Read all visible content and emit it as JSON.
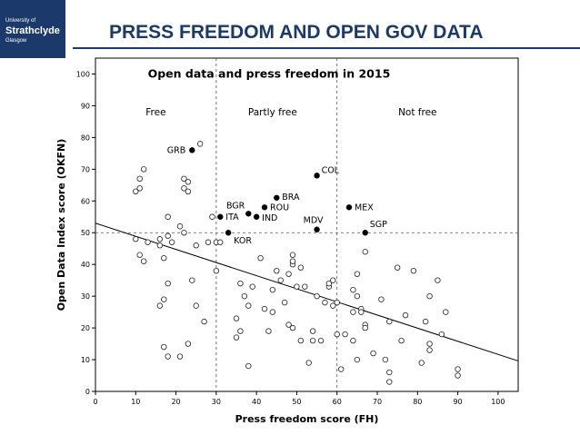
{
  "header": {
    "title": "PRESS FREEDOM AND OPEN GOV DATA",
    "logo_line1": "University of",
    "logo_line2": "Strathclyde",
    "logo_line3": "Glasgow"
  },
  "colors": {
    "brand": "#1b3a6b",
    "text": "#000000"
  },
  "chart_data": {
    "type": "scatter",
    "title": "Open data and press freedom in 2015",
    "xlabel": "Press freedom score (FH)",
    "ylabel": "Open Data Index score (OKFN)",
    "xlim": [
      0,
      105
    ],
    "ylim": [
      0,
      105
    ],
    "xticks": [
      0,
      10,
      20,
      30,
      40,
      50,
      60,
      70,
      80,
      90,
      100
    ],
    "yticks": [
      0,
      10,
      20,
      30,
      40,
      50,
      60,
      70,
      80,
      90,
      100
    ],
    "reference_lines": {
      "x": [
        30,
        60
      ],
      "y": [
        50
      ]
    },
    "regions": [
      {
        "label": "Free",
        "x": 15,
        "y": 87
      },
      {
        "label": "Partly free",
        "x": 44,
        "y": 87
      },
      {
        "label": "Not free",
        "x": 80,
        "y": 87
      }
    ],
    "labeled_points": [
      {
        "label": "GRB",
        "x": 24,
        "y": 76
      },
      {
        "label": "COL",
        "x": 55,
        "y": 68
      },
      {
        "label": "BRA",
        "x": 45,
        "y": 61
      },
      {
        "label": "BGR",
        "x": 38,
        "y": 56
      },
      {
        "label": "ROU",
        "x": 42,
        "y": 58
      },
      {
        "label": "IND",
        "x": 40,
        "y": 55
      },
      {
        "label": "ITA",
        "x": 31,
        "y": 55
      },
      {
        "label": "MEX",
        "x": 63,
        "y": 58
      },
      {
        "label": "MDV",
        "x": 55,
        "y": 51
      },
      {
        "label": "SGP",
        "x": 67,
        "y": 50
      },
      {
        "label": "KOR",
        "x": 33,
        "y": 50
      }
    ],
    "points": [
      [
        10,
        63
      ],
      [
        11,
        64
      ],
      [
        11,
        67
      ],
      [
        12,
        70
      ],
      [
        10,
        48
      ],
      [
        11,
        43
      ],
      [
        12,
        41
      ],
      [
        13,
        47
      ],
      [
        16,
        48
      ],
      [
        16,
        46
      ],
      [
        16,
        27
      ],
      [
        17,
        42
      ],
      [
        17,
        29
      ],
      [
        17,
        14
      ],
      [
        18,
        34
      ],
      [
        18,
        11
      ],
      [
        18,
        55
      ],
      [
        18,
        49
      ],
      [
        19,
        47
      ],
      [
        21,
        52
      ],
      [
        21,
        11
      ],
      [
        22,
        67
      ],
      [
        22,
        64
      ],
      [
        23,
        63
      ],
      [
        23,
        66
      ],
      [
        22,
        50
      ],
      [
        23,
        15
      ],
      [
        24,
        35
      ],
      [
        25,
        46
      ],
      [
        25,
        27
      ],
      [
        26,
        78
      ],
      [
        27,
        22
      ],
      [
        28,
        47
      ],
      [
        29,
        55
      ],
      [
        30,
        47
      ],
      [
        30,
        38
      ],
      [
        31,
        47
      ],
      [
        35,
        17
      ],
      [
        35,
        23
      ],
      [
        36,
        19
      ],
      [
        36,
        34
      ],
      [
        37,
        30
      ],
      [
        38,
        27
      ],
      [
        38,
        8
      ],
      [
        39,
        33
      ],
      [
        41,
        42
      ],
      [
        42,
        26
      ],
      [
        43,
        19
      ],
      [
        44,
        25
      ],
      [
        44,
        32
      ],
      [
        45,
        38
      ],
      [
        46,
        35
      ],
      [
        47,
        28
      ],
      [
        48,
        37
      ],
      [
        48,
        21
      ],
      [
        49,
        20
      ],
      [
        49,
        43
      ],
      [
        49,
        40
      ],
      [
        49,
        41
      ],
      [
        50,
        33
      ],
      [
        51,
        39
      ],
      [
        51,
        16
      ],
      [
        52,
        33
      ],
      [
        53,
        9
      ],
      [
        54,
        16
      ],
      [
        54,
        19
      ],
      [
        55,
        30
      ],
      [
        56,
        16
      ],
      [
        57,
        28
      ],
      [
        58,
        33
      ],
      [
        58,
        34
      ],
      [
        59,
        35
      ],
      [
        59,
        27
      ],
      [
        60,
        28
      ],
      [
        60,
        18
      ],
      [
        61,
        7
      ],
      [
        62,
        18
      ],
      [
        64,
        25
      ],
      [
        64,
        16
      ],
      [
        64,
        32
      ],
      [
        65,
        37
      ],
      [
        65,
        10
      ],
      [
        65,
        30
      ],
      [
        66,
        26
      ],
      [
        66,
        25
      ],
      [
        67,
        21
      ],
      [
        67,
        20
      ],
      [
        67,
        44
      ],
      [
        69,
        12
      ],
      [
        71,
        29
      ],
      [
        72,
        10
      ],
      [
        73,
        22
      ],
      [
        73,
        6
      ],
      [
        73,
        3
      ],
      [
        75,
        39
      ],
      [
        76,
        16
      ],
      [
        77,
        24
      ],
      [
        79,
        38
      ],
      [
        81,
        9
      ],
      [
        82,
        22
      ],
      [
        83,
        30
      ],
      [
        83,
        15
      ],
      [
        83,
        13
      ],
      [
        85,
        35
      ],
      [
        86,
        18
      ],
      [
        87,
        25
      ],
      [
        90,
        7
      ],
      [
        90,
        5
      ]
    ],
    "fit_line": {
      "x": [
        0,
        105
      ],
      "y": [
        53,
        9.6
      ]
    }
  }
}
